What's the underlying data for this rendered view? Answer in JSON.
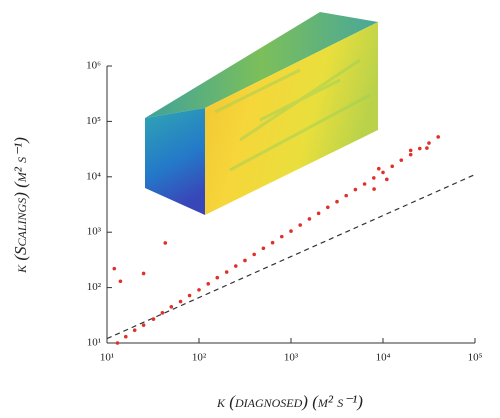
{
  "chart_data": {
    "type": "scatter",
    "x_label": "κ (diagnosed) (m² s⁻¹)",
    "y_label": "κ (Scalings) (m² s⁻¹)",
    "xscale": "log",
    "yscale": "log",
    "xlim": [
      10,
      100000
    ],
    "ylim": [
      10,
      1000000
    ],
    "xticks": [
      {
        "value": 10,
        "label": "10¹"
      },
      {
        "value": 100,
        "label": "10²"
      },
      {
        "value": 1000,
        "label": "10³"
      },
      {
        "value": 10000,
        "label": "10⁴"
      },
      {
        "value": 100000,
        "label": "10⁵"
      }
    ],
    "yticks": [
      {
        "value": 10,
        "label": "10¹"
      },
      {
        "value": 100,
        "label": "10²"
      },
      {
        "value": 1000,
        "label": "10³"
      },
      {
        "value": 10000,
        "label": "10⁴"
      },
      {
        "value": 100000,
        "label": "10⁵"
      },
      {
        "value": 1000000,
        "label": "10⁶"
      }
    ],
    "color": "#e0302a",
    "x": [
      13,
      16,
      20,
      25,
      32,
      40,
      50,
      63,
      79,
      100,
      126,
      158,
      200,
      251,
      316,
      398,
      501,
      631,
      794,
      1000,
      1259,
      1585,
      1995,
      2512,
      3162,
      3981,
      5012,
      6310,
      7943,
      10000,
      12600,
      15800,
      20000,
      25100,
      31600,
      39800,
      9000,
      11000,
      20000,
      30000,
      8000,
      12,
      14,
      43,
      25
    ],
    "y": [
      10,
      13,
      17,
      21,
      27,
      35,
      45,
      56,
      72,
      91,
      117,
      151,
      191,
      245,
      309,
      398,
      513,
      646,
      832,
      1047,
      1349,
      1738,
      2188,
      2818,
      3548,
      4571,
      5888,
      7413,
      9550,
      12000,
      15500,
      20000,
      25100,
      32400,
      40700,
      52500,
      14000,
      9000,
      30000,
      33000,
      6000,
      220,
      130,
      640,
      180
    ],
    "reference_line": {
      "color": "#333333",
      "x": [
        10,
        100000
      ],
      "y": [
        12,
        11000
      ]
    }
  }
}
